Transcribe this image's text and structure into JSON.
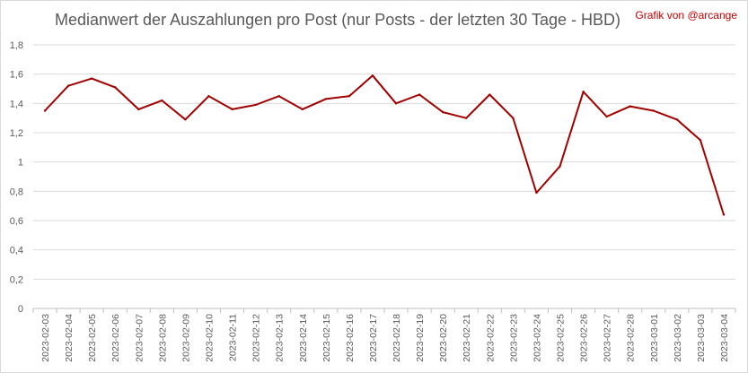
{
  "chart_data": {
    "type": "line",
    "title": "Medianwert der Auszahlungen pro Post (nur Posts - der letzten 30 Tage - HBD)",
    "credit": "Grafik von @arcange",
    "xlabel": "",
    "ylabel": "",
    "ylim": [
      0,
      1.8
    ],
    "yticks": [
      "0",
      "0,2",
      "0,4",
      "0,6",
      "0,8",
      "1",
      "1,2",
      "1,4",
      "1,6",
      "1,8"
    ],
    "grid": true,
    "legend": "none",
    "line_color": "#a00000",
    "categories": [
      "2023-02-03",
      "2023-02-04",
      "2023-02-05",
      "2023-02-06",
      "2023-02-07",
      "2023-02-08",
      "2023-02-09",
      "2023-02-10",
      "2023-02-11",
      "2023-02-12",
      "2023-02-13",
      "2023-02-14",
      "2023-02-15",
      "2023-02-16",
      "2023-02-17",
      "2023-02-18",
      "2023-02-19",
      "2023-02-20",
      "2023-02-21",
      "2023-02-22",
      "2023-02-23",
      "2023-02-24",
      "2023-02-25",
      "2023-02-26",
      "2023-02-27",
      "2023-02-28",
      "2023-03-01",
      "2023-03-02",
      "2023-03-03",
      "2023-03-04"
    ],
    "values": [
      1.35,
      1.52,
      1.57,
      1.51,
      1.36,
      1.42,
      1.29,
      1.45,
      1.36,
      1.39,
      1.45,
      1.36,
      1.43,
      1.45,
      1.59,
      1.4,
      1.46,
      1.34,
      1.3,
      1.46,
      1.3,
      0.79,
      0.97,
      1.48,
      1.31,
      1.38,
      1.35,
      1.29,
      1.15,
      0.64
    ]
  }
}
